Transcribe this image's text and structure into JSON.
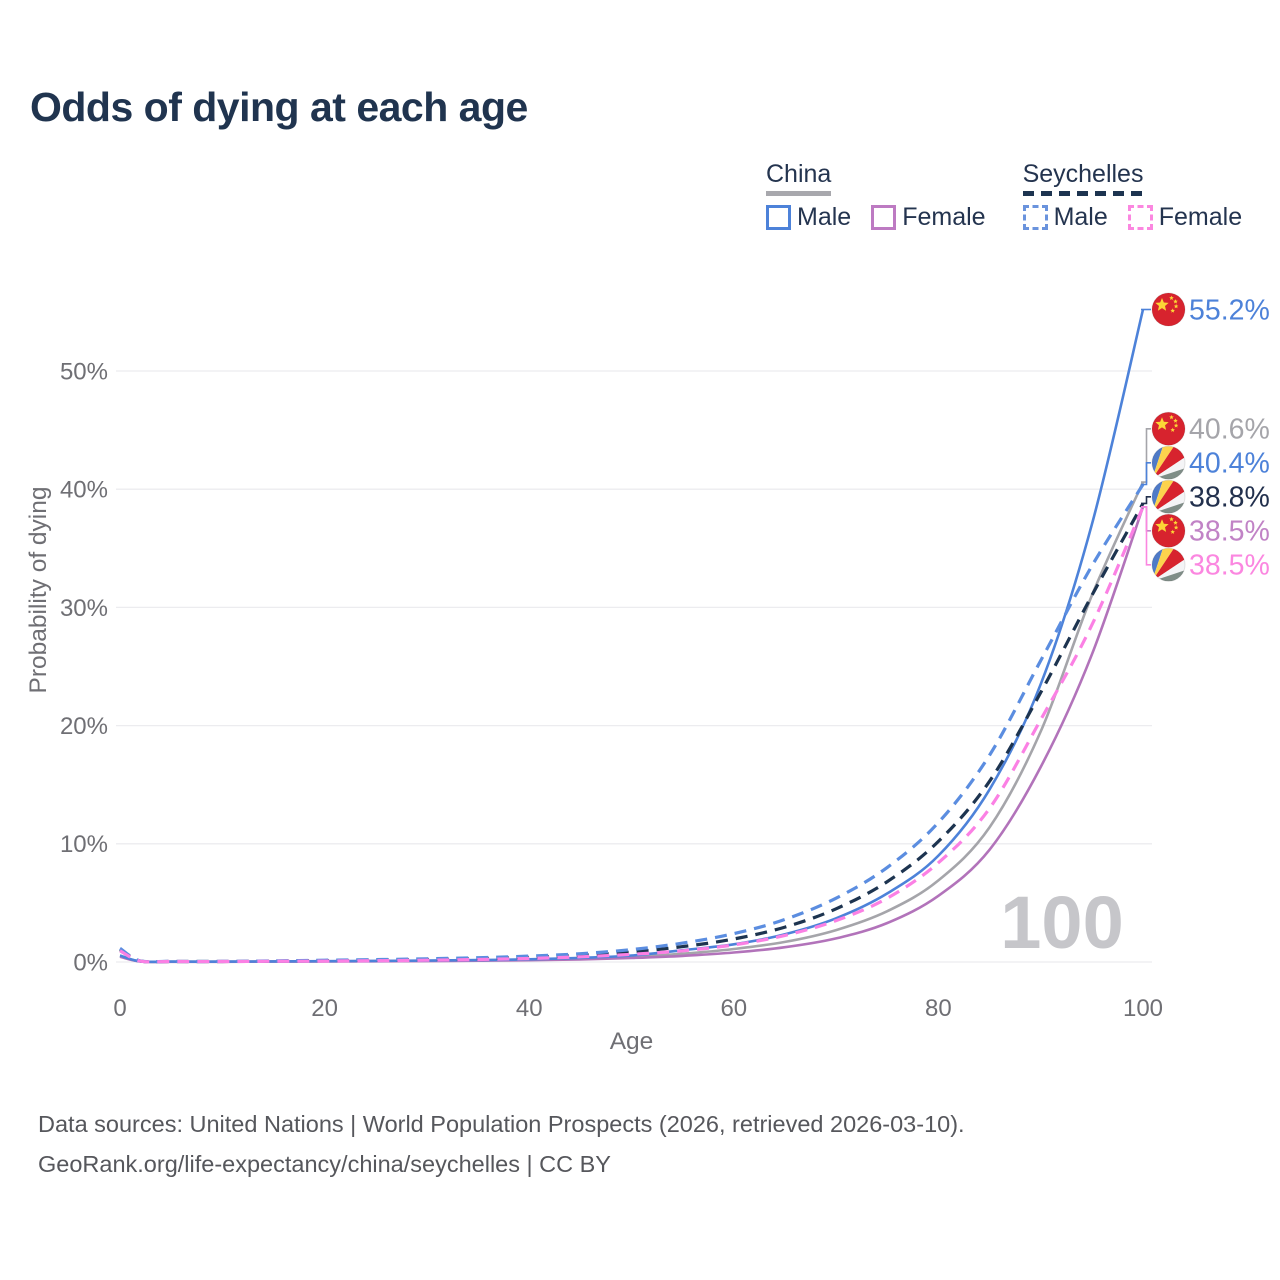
{
  "title": "Odds of dying at each age",
  "legend": {
    "groups": [
      {
        "name": "China",
        "line_style": "solid",
        "underline_color": "#a8a8ad",
        "items": [
          {
            "label": "Male",
            "color": "#4d82d9"
          },
          {
            "label": "Female",
            "color": "#bd7ac2"
          }
        ]
      },
      {
        "name": "Seychelles",
        "line_style": "dashed",
        "underline_color": "#1d3450",
        "items": [
          {
            "label": "Male",
            "color": "#6a93dd"
          },
          {
            "label": "Female",
            "color": "#fb87e0"
          }
        ]
      }
    ]
  },
  "watermark": "100",
  "chart_data": {
    "type": "line",
    "title": "Odds of dying at each age",
    "xlabel": "Age",
    "ylabel": "Probability of dying",
    "xlim": [
      0,
      100
    ],
    "ylim": [
      0,
      57
    ],
    "xticks": [
      0,
      20,
      40,
      60,
      80,
      100
    ],
    "ytick_labels": [
      "0%",
      "10%",
      "20%",
      "30%",
      "40%",
      "50%"
    ],
    "ytick_values": [
      0,
      10,
      20,
      30,
      40,
      50
    ],
    "grid": "horizontal",
    "legend_position": "top-right",
    "x": [
      0,
      2,
      5,
      10,
      15,
      20,
      25,
      30,
      35,
      40,
      45,
      50,
      55,
      60,
      65,
      70,
      75,
      80,
      85,
      90,
      95,
      100
    ],
    "series": [
      {
        "name": "China",
        "country": "China",
        "flag": "china",
        "sex": "both",
        "color": "#a5a5aa",
        "dash": "solid",
        "end_label": "40.6%",
        "end_value": 40.6,
        "values": [
          0.5,
          0.045,
          0.025,
          0.025,
          0.04,
          0.055,
          0.075,
          0.1,
          0.135,
          0.19,
          0.28,
          0.44,
          0.7,
          1.1,
          1.7,
          2.7,
          4.3,
          6.9,
          11.4,
          19.5,
          31.0,
          40.6
        ]
      },
      {
        "name": "China Female",
        "country": "China",
        "flag": "china",
        "sex": "female",
        "color": "#b273ba",
        "dash": "solid",
        "end_label": "38.5%",
        "end_value": 38.5,
        "values": [
          0.45,
          0.04,
          0.02,
          0.02,
          0.03,
          0.04,
          0.06,
          0.08,
          0.11,
          0.15,
          0.22,
          0.34,
          0.52,
          0.8,
          1.25,
          2.0,
          3.3,
          5.6,
          9.5,
          16.5,
          26.0,
          38.5
        ]
      },
      {
        "name": "China Male",
        "country": "China",
        "flag": "china",
        "sex": "male",
        "color": "#4d82d9",
        "dash": "solid",
        "end_label": "55.2%",
        "end_value": 55.2,
        "values": [
          0.55,
          0.05,
          0.03,
          0.03,
          0.05,
          0.07,
          0.09,
          0.12,
          0.16,
          0.23,
          0.35,
          0.55,
          1.0,
          1.5,
          2.35,
          3.7,
          5.8,
          9.0,
          14.6,
          23.5,
          37.0,
          55.2
        ]
      },
      {
        "name": "Seychelles",
        "country": "Seychelles",
        "flag": "seychelles",
        "sex": "both",
        "color": "#1d3450",
        "dash": "dashed",
        "end_label": "38.8%",
        "end_value": 38.8,
        "values": [
          1.05,
          0.075,
          0.045,
          0.045,
          0.075,
          0.115,
          0.155,
          0.21,
          0.285,
          0.4,
          0.57,
          0.85,
          1.3,
          1.95,
          2.95,
          4.5,
          6.8,
          10.2,
          15.3,
          22.8,
          31.0,
          38.8
        ]
      },
      {
        "name": "Seychelles Male",
        "country": "Seychelles",
        "flag": "seychelles",
        "sex": "male",
        "color": "#5b8de0",
        "dash": "dashed",
        "end_label": "40.4%",
        "end_value": 40.4,
        "values": [
          1.15,
          0.08,
          0.05,
          0.05,
          0.09,
          0.15,
          0.2,
          0.27,
          0.36,
          0.5,
          0.7,
          1.05,
          1.6,
          2.4,
          3.6,
          5.4,
          8.0,
          11.8,
          17.5,
          25.5,
          33.5,
          40.4
        ]
      },
      {
        "name": "Seychelles Female",
        "country": "Seychelles",
        "flag": "seychelles",
        "sex": "female",
        "color": "#fb80e4",
        "dash": "dashed",
        "end_label": "38.5%",
        "end_value": 38.5,
        "values": [
          0.95,
          0.07,
          0.04,
          0.04,
          0.06,
          0.08,
          0.11,
          0.15,
          0.21,
          0.3,
          0.44,
          0.65,
          0.95,
          1.45,
          2.25,
          3.5,
          5.4,
          8.4,
          13.0,
          20.5,
          28.5,
          38.5
        ]
      }
    ],
    "label_colors": {
      "china-male": "#4d82d9",
      "china": "#a5a5aa",
      "seychelles-male": "#4d82d9",
      "seychelles": "#22304d",
      "china-female": "#c183c6",
      "seychelles-female": "#fb87e0"
    }
  },
  "flag_colors": {
    "china": {
      "field": "#d7232e",
      "star": "#fcd636"
    },
    "seychelles": {
      "blue": "#4e7ac7",
      "yellow": "#fcd34d",
      "red": "#d7232e",
      "white": "#f4f4f6",
      "green": "#7f8d87"
    }
  },
  "axis_color": "#6f6f74",
  "grid_color": "#ececef",
  "watermark_color": "#c6c6ca",
  "footer": {
    "line1": "Data sources: United Nations | World Population Prospects (2026, retrieved 2026-03-10).",
    "line2": "GeoRank.org/life-expectancy/china/seychelles | CC BY"
  }
}
